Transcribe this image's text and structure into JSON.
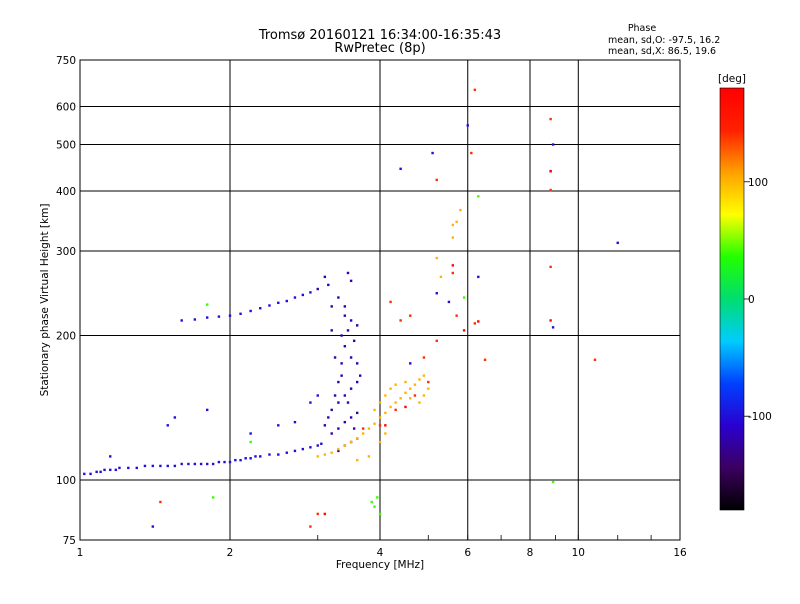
{
  "chart_data": {
    "type": "scatter",
    "title": "Tromsø 20160121 16:34:00-16:35:43",
    "subtitle": "RwPretec (8p)",
    "xlabel": "Frequency [MHz]",
    "ylabel": "Stationary phase Virtual Height [km]",
    "x_scale": "log",
    "y_scale": "log",
    "xlim": [
      1,
      16
    ],
    "ylim": [
      75,
      750
    ],
    "x_ticks": [
      "1",
      "2",
      "4",
      "6",
      "8",
      "10",
      "16"
    ],
    "y_ticks": [
      "75",
      "100",
      "200",
      "300",
      "400",
      "500",
      "600",
      "750"
    ],
    "grid": true,
    "phase_stats": {
      "heading": "Phase",
      "line_o": "mean, sd,O: -97.5, 16.2",
      "line_x": "mean, sd,X:  86.5, 19.6"
    },
    "colorbar": {
      "label": "[deg]",
      "range": [
        -180,
        180
      ],
      "ticks": [
        "100",
        "0",
        "-100"
      ],
      "colors": [
        "#000000",
        "#3c0060",
        "#2a00d0",
        "#0040ff",
        "#00ccff",
        "#00dd70",
        "#22ff00",
        "#ffff00",
        "#ffa000",
        "#ff2000",
        "#ff0000"
      ]
    },
    "series": [
      {
        "phase": -100,
        "points": [
          [
            1.02,
            103
          ],
          [
            1.05,
            103
          ],
          [
            1.08,
            104
          ],
          [
            1.1,
            104
          ],
          [
            1.12,
            105
          ],
          [
            1.15,
            105
          ],
          [
            1.18,
            105
          ],
          [
            1.2,
            106
          ],
          [
            1.25,
            106
          ],
          [
            1.3,
            106
          ],
          [
            1.35,
            107
          ],
          [
            1.4,
            107
          ],
          [
            1.45,
            107
          ],
          [
            1.5,
            107
          ],
          [
            1.55,
            107
          ],
          [
            1.6,
            108
          ],
          [
            1.65,
            108
          ],
          [
            1.7,
            108
          ],
          [
            1.75,
            108
          ],
          [
            1.8,
            108
          ],
          [
            1.85,
            108
          ],
          [
            1.9,
            109
          ],
          [
            1.95,
            109
          ],
          [
            2.0,
            109
          ],
          [
            2.05,
            110
          ],
          [
            2.1,
            110
          ],
          [
            2.15,
            111
          ],
          [
            2.2,
            111
          ],
          [
            2.25,
            112
          ],
          [
            2.3,
            112
          ],
          [
            2.4,
            113
          ],
          [
            2.5,
            113
          ],
          [
            2.6,
            114
          ],
          [
            2.7,
            115
          ],
          [
            2.8,
            116
          ],
          [
            2.9,
            117
          ],
          [
            3.0,
            118
          ],
          [
            3.05,
            119
          ],
          [
            1.15,
            112
          ],
          [
            1.5,
            130
          ],
          [
            1.8,
            140
          ],
          [
            2.2,
            125
          ],
          [
            2.5,
            130
          ],
          [
            2.7,
            132
          ],
          [
            2.9,
            145
          ],
          [
            3.0,
            150
          ],
          [
            1.6,
            215
          ],
          [
            1.7,
            216
          ],
          [
            1.8,
            218
          ],
          [
            1.9,
            219
          ],
          [
            2.0,
            220
          ],
          [
            2.1,
            222
          ],
          [
            2.2,
            225
          ],
          [
            2.3,
            228
          ],
          [
            2.4,
            231
          ],
          [
            2.5,
            234
          ],
          [
            2.6,
            236
          ],
          [
            2.7,
            240
          ],
          [
            2.8,
            243
          ],
          [
            2.9,
            246
          ],
          [
            5.1,
            480
          ],
          [
            6.0,
            548
          ],
          [
            4.4,
            445
          ],
          [
            5.2,
            245
          ],
          [
            5.5,
            235
          ],
          [
            4.6,
            175
          ],
          [
            6.3,
            265
          ],
          [
            8.9,
            500
          ],
          [
            8.9,
            208
          ],
          [
            12.0,
            312
          ],
          [
            1.4,
            80
          ],
          [
            1.55,
            135
          ]
        ]
      },
      {
        "phase": -120,
        "points": [
          [
            3.1,
            130
          ],
          [
            3.15,
            135
          ],
          [
            3.2,
            140
          ],
          [
            3.25,
            150
          ],
          [
            3.3,
            160
          ],
          [
            3.35,
            175
          ],
          [
            3.4,
            190
          ],
          [
            3.45,
            205
          ],
          [
            3.5,
            215
          ],
          [
            3.2,
            125
          ],
          [
            3.3,
            128
          ],
          [
            3.4,
            132
          ],
          [
            3.5,
            135
          ],
          [
            3.6,
            138
          ],
          [
            3.3,
            145
          ],
          [
            3.4,
            150
          ],
          [
            3.5,
            155
          ],
          [
            3.6,
            160
          ],
          [
            3.35,
            200
          ],
          [
            3.4,
            230
          ],
          [
            3.5,
            260
          ],
          [
            3.45,
            270
          ],
          [
            3.15,
            255
          ],
          [
            3.1,
            265
          ],
          [
            3.3,
            240
          ],
          [
            3.2,
            230
          ],
          [
            3.0,
            250
          ],
          [
            3.5,
            180
          ],
          [
            3.6,
            175
          ],
          [
            3.65,
            165
          ],
          [
            3.3,
            115
          ],
          [
            3.4,
            118
          ],
          [
            3.5,
            120
          ],
          [
            3.6,
            122
          ],
          [
            3.25,
            180
          ],
          [
            3.55,
            195
          ],
          [
            3.6,
            210
          ],
          [
            3.4,
            220
          ],
          [
            3.2,
            205
          ],
          [
            3.35,
            165
          ],
          [
            3.45,
            145
          ],
          [
            3.55,
            128
          ]
        ]
      },
      {
        "phase": 100,
        "points": [
          [
            3.0,
            112
          ],
          [
            3.1,
            113
          ],
          [
            3.2,
            114
          ],
          [
            3.3,
            116
          ],
          [
            3.4,
            118
          ],
          [
            3.5,
            120
          ],
          [
            3.6,
            122
          ],
          [
            3.7,
            125
          ],
          [
            3.8,
            128
          ],
          [
            3.9,
            131
          ],
          [
            4.0,
            135
          ],
          [
            4.1,
            138
          ],
          [
            4.2,
            142
          ],
          [
            4.3,
            145
          ],
          [
            4.4,
            148
          ],
          [
            4.5,
            152
          ],
          [
            4.6,
            155
          ],
          [
            4.7,
            158
          ],
          [
            4.8,
            162
          ],
          [
            4.9,
            165
          ],
          [
            3.9,
            140
          ],
          [
            4.0,
            145
          ],
          [
            4.1,
            150
          ],
          [
            4.2,
            155
          ],
          [
            4.3,
            158
          ],
          [
            4.5,
            160
          ],
          [
            4.6,
            148
          ],
          [
            4.8,
            145
          ],
          [
            4.9,
            150
          ],
          [
            5.0,
            155
          ],
          [
            5.3,
            265
          ],
          [
            5.6,
            320
          ],
          [
            5.7,
            345
          ],
          [
            5.8,
            365
          ],
          [
            5.6,
            340
          ],
          [
            5.2,
            290
          ],
          [
            3.6,
            110
          ],
          [
            3.8,
            112
          ],
          [
            4.0,
            120
          ],
          [
            4.1,
            125
          ]
        ]
      },
      {
        "phase": 140,
        "points": [
          [
            6.2,
            650
          ],
          [
            5.2,
            422
          ],
          [
            4.4,
            215
          ],
          [
            4.6,
            220
          ],
          [
            4.9,
            180
          ],
          [
            5.2,
            195
          ],
          [
            3.7,
            128
          ],
          [
            4.0,
            130
          ],
          [
            4.3,
            140
          ],
          [
            4.7,
            150
          ],
          [
            5.0,
            160
          ],
          [
            5.6,
            270
          ],
          [
            6.2,
            212
          ],
          [
            6.5,
            178
          ],
          [
            5.7,
            220
          ],
          [
            2.9,
            80
          ],
          [
            3.0,
            85
          ],
          [
            4.2,
            235
          ],
          [
            8.8,
            440
          ],
          [
            8.8,
            278
          ],
          [
            8.8,
            565
          ],
          [
            8.8,
            402
          ],
          [
            10.8,
            178
          ],
          [
            6.1,
            480
          ],
          [
            1.45,
            90
          ]
        ]
      },
      {
        "phase": 40,
        "points": [
          [
            1.8,
            232
          ],
          [
            1.85,
            92
          ],
          [
            3.9,
            88
          ],
          [
            4.0,
            85
          ],
          [
            3.85,
            90
          ],
          [
            3.95,
            92
          ],
          [
            6.3,
            390
          ],
          [
            8.9,
            99
          ],
          [
            2.2,
            120
          ],
          [
            5.9,
            240
          ]
        ]
      },
      {
        "phase": 175,
        "points": [
          [
            5.9,
            205
          ],
          [
            6.3,
            214
          ],
          [
            5.6,
            280
          ],
          [
            8.8,
            215
          ],
          [
            4.1,
            130
          ],
          [
            4.5,
            142
          ],
          [
            8.8,
            440
          ],
          [
            3.1,
            85
          ]
        ]
      }
    ]
  }
}
